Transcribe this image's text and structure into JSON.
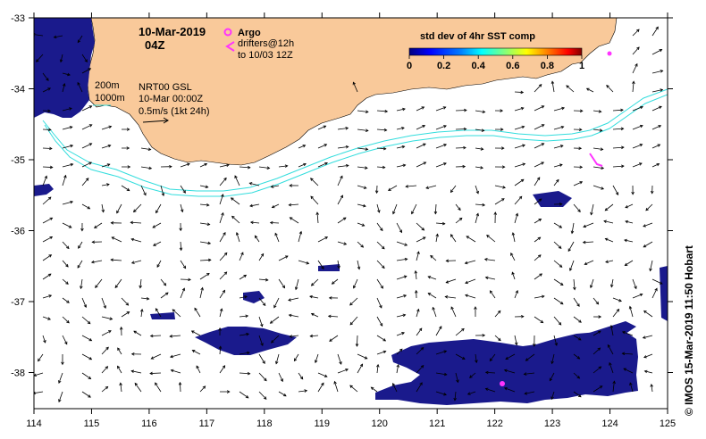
{
  "header": {
    "date": "10-Mar-2019",
    "time": "04Z"
  },
  "legend": {
    "argo_label": "Argo",
    "drifters_label": "drifters@12h",
    "drifters_sub": "to 10/03 12Z",
    "argo_color": "#ff33ff",
    "drifter_color": "#ff33ff"
  },
  "depth_contours": {
    "shallow": "200m",
    "deep": "1000m",
    "color": "#33dddd"
  },
  "current_info": {
    "line1": "NRT00 GSL",
    "line2": "10-Mar 00:00Z",
    "line3": "0.5m/s (1kt 24h)"
  },
  "colorbar": {
    "title": "std dev of 4hr SST comp",
    "ticks": [
      "0",
      "0.2",
      "0.4",
      "0.6",
      "0.8",
      "1"
    ],
    "colors": [
      "#00007f",
      "#0000ff",
      "#007fff",
      "#00ffff",
      "#7fff7f",
      "#ffff00",
      "#ff7f00",
      "#ff0000",
      "#7f0000"
    ]
  },
  "axes": {
    "x_ticks": [
      "114",
      "115",
      "116",
      "117",
      "118",
      "119",
      "120",
      "121",
      "122",
      "123",
      "124",
      "125"
    ],
    "y_ticks": [
      "-33",
      "-34",
      "-35",
      "-36",
      "-37",
      "-38"
    ]
  },
  "colors": {
    "land": "#f9c99a",
    "patch": "#1a1a8c",
    "frame": "#000000"
  },
  "credit": "© IMOS 15-Mar-2019 11:50 Hobart"
}
